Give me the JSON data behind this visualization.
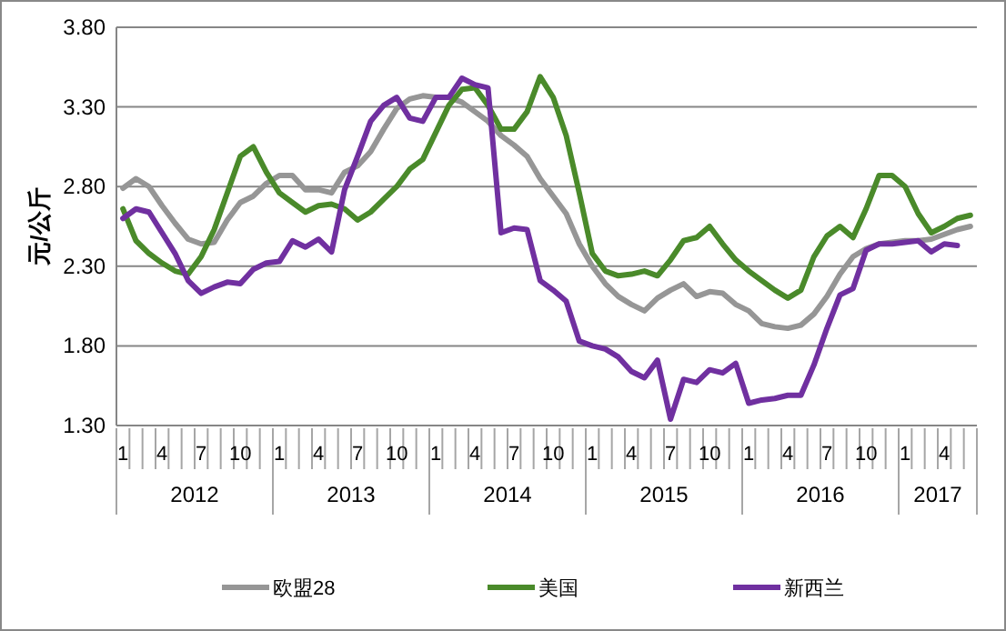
{
  "chart_data": {
    "type": "line",
    "ylabel": "元/公斤",
    "categories": [
      "1",
      null,
      null,
      "4",
      null,
      null,
      "7",
      null,
      null,
      "10",
      null,
      null,
      "1",
      null,
      null,
      "4",
      null,
      null,
      "7",
      null,
      null,
      "10",
      null,
      null,
      "1",
      null,
      null,
      "4",
      null,
      null,
      "7",
      null,
      null,
      "10",
      null,
      null,
      "1",
      null,
      null,
      "4",
      null,
      null,
      "7",
      null,
      null,
      "10",
      null,
      null,
      "1",
      null,
      null,
      "4",
      null,
      null,
      "7",
      null,
      null,
      "10",
      null,
      null,
      "1",
      null,
      null,
      "4",
      null,
      null
    ],
    "annotations": [
      "2012",
      "2013",
      "2014",
      "2015",
      "2016",
      "2017"
    ],
    "ylim": [
      1.3,
      3.8
    ],
    "yticks": [
      {
        "value": 1.3,
        "label": "1.30"
      },
      {
        "value": 1.8,
        "label": "1.80"
      },
      {
        "value": 2.3,
        "label": "2.30"
      },
      {
        "value": 2.8,
        "label": "2.80"
      },
      {
        "value": 3.3,
        "label": "3.30"
      },
      {
        "value": 3.8,
        "label": "3.80"
      }
    ],
    "grid": "y",
    "legend": "bottom",
    "line_style": "solid",
    "marker": "none",
    "series": [
      {
        "name": "欧盟28",
        "color": "#969696",
        "values": [
          2.79,
          2.85,
          2.8,
          2.68,
          2.57,
          2.47,
          2.44,
          2.45,
          2.59,
          2.7,
          2.74,
          2.82,
          2.87,
          2.87,
          2.78,
          2.78,
          2.76,
          2.89,
          2.93,
          3.02,
          3.16,
          3.29,
          3.35,
          3.37,
          3.36,
          3.36,
          3.33,
          3.27,
          3.21,
          3.12,
          3.06,
          2.99,
          2.85,
          2.74,
          2.63,
          2.44,
          2.3,
          2.19,
          2.11,
          2.06,
          2.02,
          2.1,
          2.15,
          2.19,
          2.11,
          2.14,
          2.13,
          2.06,
          2.02,
          1.94,
          1.92,
          1.91,
          1.93,
          2.0,
          2.11,
          2.25,
          2.36,
          2.41,
          2.44,
          2.45,
          2.46,
          2.46,
          2.47,
          2.5,
          2.53,
          2.55
        ]
      },
      {
        "name": "美国",
        "color": "#4a8a2a",
        "values": [
          2.66,
          2.46,
          2.38,
          2.32,
          2.27,
          2.25,
          2.36,
          2.53,
          2.76,
          2.99,
          3.05,
          2.89,
          2.76,
          2.7,
          2.64,
          2.68,
          2.69,
          2.66,
          2.59,
          2.64,
          2.72,
          2.8,
          2.91,
          2.97,
          3.14,
          3.31,
          3.41,
          3.42,
          3.31,
          3.16,
          3.16,
          3.27,
          3.49,
          3.36,
          3.12,
          2.76,
          2.38,
          2.27,
          2.24,
          2.25,
          2.27,
          2.24,
          2.34,
          2.46,
          2.48,
          2.55,
          2.44,
          2.34,
          2.27,
          2.21,
          2.15,
          2.1,
          2.15,
          2.36,
          2.49,
          2.55,
          2.48,
          2.66,
          2.87,
          2.87,
          2.8,
          2.63,
          2.51,
          2.55,
          2.6,
          2.62
        ]
      },
      {
        "name": "新西兰",
        "color": "#7030a0",
        "values": [
          2.6,
          2.66,
          2.64,
          2.51,
          2.38,
          2.21,
          2.13,
          2.17,
          2.2,
          2.19,
          2.28,
          2.32,
          2.33,
          2.46,
          2.42,
          2.47,
          2.39,
          2.78,
          2.99,
          3.21,
          3.31,
          3.36,
          3.23,
          3.21,
          3.36,
          3.36,
          3.48,
          3.44,
          3.42,
          2.51,
          2.54,
          2.53,
          2.21,
          2.15,
          2.08,
          1.83,
          1.8,
          1.78,
          1.73,
          1.64,
          1.6,
          1.71,
          1.34,
          1.59,
          1.57,
          1.65,
          1.63,
          1.69,
          1.44,
          1.46,
          1.47,
          1.49,
          1.49,
          1.68,
          1.91,
          2.12,
          2.16,
          2.4,
          2.44,
          2.44,
          2.45,
          2.46,
          2.39,
          2.44,
          2.43,
          null
        ]
      }
    ]
  }
}
